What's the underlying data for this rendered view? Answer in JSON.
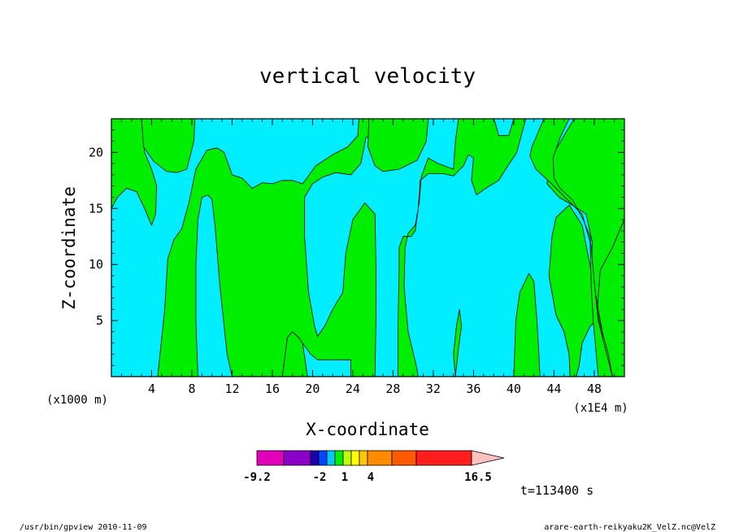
{
  "chart_data": {
    "type": "filled-contour",
    "title": "vertical velocity",
    "xlabel": "X-coordinate",
    "ylabel": "Z-coordinate",
    "x_unit_left": "(x1000 m)",
    "x_unit_right": "(x1E4 m)",
    "xlim": [
      0,
      51
    ],
    "ylim": [
      0,
      23
    ],
    "xticks": [
      4,
      8,
      12,
      16,
      20,
      24,
      28,
      32,
      36,
      40,
      44,
      48
    ],
    "yticks": [
      5,
      10,
      15,
      20
    ],
    "fill_regions": [
      {
        "level": "1 to 2",
        "color": "#00ee00",
        "polygons": [
          [
            [
              0,
              23
            ],
            [
              3,
              23
            ],
            [
              3.3,
              20
            ],
            [
              4,
              18.5
            ],
            [
              4.5,
              17
            ],
            [
              4.4,
              14.5
            ],
            [
              4,
              13.5
            ],
            [
              3.3,
              15
            ],
            [
              2.5,
              16.5
            ],
            [
              1.5,
              16.8
            ],
            [
              0.6,
              16
            ],
            [
              0,
              15
            ]
          ],
          [
            [
              3,
              23
            ],
            [
              3.2,
              20.5
            ],
            [
              4.2,
              19.2
            ],
            [
              5.5,
              18.3
            ],
            [
              6.5,
              18.2
            ],
            [
              7.5,
              18.5
            ],
            [
              8.2,
              21
            ],
            [
              8.3,
              23
            ]
          ],
          [
            [
              4.6,
              0
            ],
            [
              5.3,
              6
            ],
            [
              5.6,
              10.5
            ],
            [
              6.2,
              12.2
            ],
            [
              7,
              13.2
            ],
            [
              7.7,
              15.5
            ],
            [
              8.4,
              18.5
            ],
            [
              9.5,
              20.2
            ],
            [
              10.5,
              20.4
            ],
            [
              11.2,
              20
            ],
            [
              12,
              18
            ],
            [
              13,
              17.7
            ],
            [
              14,
              16.8
            ],
            [
              15,
              17.3
            ],
            [
              16,
              17.2
            ],
            [
              17,
              17.5
            ],
            [
              18,
              17.5
            ],
            [
              19,
              17.2
            ],
            [
              19.5,
              17.8
            ],
            [
              20.3,
              18.8
            ],
            [
              22,
              19.8
            ],
            [
              23.5,
              20.5
            ],
            [
              24.5,
              21.5
            ],
            [
              24.6,
              23
            ],
            [
              28,
              23
            ],
            [
              27.9,
              22
            ],
            [
              26.3,
              21.8
            ],
            [
              25.3,
              21.3
            ],
            [
              24.8,
              19
            ],
            [
              23.8,
              18
            ],
            [
              22.3,
              18.2
            ],
            [
              21,
              17.8
            ],
            [
              20,
              17.2
            ],
            [
              19.2,
              16
            ],
            [
              19.2,
              12.5
            ],
            [
              19.6,
              7.5
            ],
            [
              20.2,
              4.5
            ],
            [
              20.5,
              3.6
            ],
            [
              21.2,
              4.5
            ],
            [
              22,
              6
            ],
            [
              23,
              7.5
            ],
            [
              23.3,
              11
            ],
            [
              24,
              14
            ],
            [
              25.2,
              15.5
            ],
            [
              26.2,
              14.5
            ],
            [
              26.3,
              10
            ],
            [
              26.3,
              5
            ],
            [
              26.2,
              0
            ],
            [
              23.8,
              0
            ],
            [
              23.8,
              1.5
            ],
            [
              22,
              1.5
            ],
            [
              20.5,
              1.5
            ],
            [
              19.8,
              2
            ],
            [
              19,
              3
            ],
            [
              18.6,
              3.5
            ],
            [
              18,
              4
            ],
            [
              17.5,
              3.5
            ],
            [
              17,
              0
            ],
            [
              12,
              0
            ],
            [
              11.5,
              2
            ],
            [
              10.8,
              8
            ],
            [
              10.3,
              13.5
            ],
            [
              10,
              15.8
            ],
            [
              9.6,
              16.2
            ],
            [
              9,
              16
            ],
            [
              8.6,
              14
            ],
            [
              8.4,
              10
            ],
            [
              8.4,
              5
            ],
            [
              8.6,
              0
            ]
          ],
          [
            [
              17,
              0
            ],
            [
              17.5,
              3.5
            ],
            [
              18,
              4
            ],
            [
              18.6,
              3.5
            ],
            [
              19,
              3
            ],
            [
              19.5,
              0
            ]
          ],
          [
            [
              25.6,
              23
            ],
            [
              25.5,
              20.5
            ],
            [
              26.2,
              18.8
            ],
            [
              27,
              18.3
            ],
            [
              28.6,
              18.5
            ],
            [
              29.5,
              18.9
            ],
            [
              30.4,
              19.3
            ],
            [
              31.3,
              21
            ],
            [
              31.5,
              23
            ]
          ],
          [
            [
              28.5,
              0
            ],
            [
              28.5,
              5
            ],
            [
              28.6,
              9.5
            ],
            [
              28.6,
              11.5
            ],
            [
              29,
              12.5
            ],
            [
              29.8,
              12.5
            ],
            [
              30.2,
              13
            ],
            [
              30.5,
              15
            ],
            [
              30.7,
              17.5
            ],
            [
              31.5,
              18.1
            ],
            [
              33,
              18.1
            ],
            [
              34,
              17.9
            ],
            [
              35,
              18.8
            ],
            [
              35.5,
              19.8
            ],
            [
              36,
              19.5
            ],
            [
              35.8,
              17.5
            ],
            [
              36.3,
              16.2
            ],
            [
              37.2,
              16.8
            ],
            [
              38.5,
              17.5
            ],
            [
              39.2,
              18.5
            ],
            [
              40.3,
              20
            ],
            [
              41.2,
              23
            ],
            [
              40,
              23
            ],
            [
              39.5,
              21.5
            ],
            [
              38.5,
              21.5
            ],
            [
              38.2,
              22.5
            ],
            [
              38,
              23
            ],
            [
              34.5,
              23
            ],
            [
              34.2,
              21
            ],
            [
              34,
              18.5
            ],
            [
              32.5,
              19
            ],
            [
              31.5,
              19.5
            ],
            [
              30.8,
              17.8
            ],
            [
              30.6,
              15.5
            ],
            [
              30.2,
              13.5
            ],
            [
              29.5,
              12.8
            ],
            [
              29.2,
              11.5
            ],
            [
              29.1,
              8
            ],
            [
              29.5,
              4
            ],
            [
              30.3,
              1
            ],
            [
              30.5,
              0
            ]
          ],
          [
            [
              34.2,
              0
            ],
            [
              34.5,
              2.5
            ],
            [
              34.8,
              4.5
            ],
            [
              34.6,
              6
            ],
            [
              34.3,
              4.5
            ],
            [
              34.0,
              2
            ]
          ],
          [
            [
              40,
              0
            ],
            [
              40.2,
              5
            ],
            [
              40.6,
              7.5
            ],
            [
              41.5,
              9.2
            ],
            [
              42,
              8.5
            ],
            [
              42.3,
              5
            ],
            [
              42.5,
              2
            ],
            [
              42.6,
              0
            ]
          ],
          [
            [
              43.2,
              0
            ],
            [
              43.2,
              0.1
            ]
          ],
          [
            [
              43.5,
              9
            ],
            [
              44.2,
              12
            ],
            [
              44.8,
              14.2
            ],
            [
              45.2,
              15
            ],
            [
              45.7,
              15
            ],
            [
              46.3,
              14.2
            ],
            [
              46.9,
              12.5
            ],
            [
              47.6,
              9
            ],
            [
              48.4,
              5
            ],
            [
              49.3,
              2
            ],
            [
              49.8,
              0
            ],
            [
              51,
              0
            ],
            [
              51,
              14
            ],
            [
              50.5,
              13
            ],
            [
              49.8,
              11.5
            ],
            [
              48.6,
              9.5
            ],
            [
              48.2,
              5
            ],
            [
              47.6,
              4.5
            ],
            [
              46.8,
              3
            ],
            [
              46.5,
              1
            ],
            [
              46.2,
              0
            ],
            [
              45.6,
              0
            ],
            [
              45.5,
              2
            ],
            [
              45,
              4
            ],
            [
              44.2,
              5.5
            ],
            [
              43.7,
              8
            ]
          ],
          [
            [
              43.5,
              9
            ],
            [
              43.7,
              8
            ],
            [
              44.2,
              5.5
            ],
            [
              45,
              4
            ],
            [
              45.5,
              2
            ],
            [
              45.6,
              0
            ],
            [
              46.2,
              0
            ],
            [
              46.5,
              1
            ],
            [
              46.8,
              3
            ],
            [
              47.6,
              4.5
            ],
            [
              48.2,
              5
            ],
            [
              48.6,
              9.5
            ],
            [
              49.8,
              11.5
            ],
            [
              50.5,
              13
            ],
            [
              51,
              14
            ],
            [
              51,
              23
            ],
            [
              51,
              23
            ],
            [
              46,
              23
            ],
            [
              45,
              21.5
            ],
            [
              43.7,
              19.5
            ],
            [
              43.3,
              17.2
            ],
            [
              44.5,
              16
            ],
            [
              46,
              15.2
            ],
            [
              47.2,
              14.5
            ],
            [
              47.8,
              12
            ],
            [
              47.7,
              9
            ],
            [
              48.5,
              5
            ],
            [
              49.4,
              2
            ],
            [
              49.8,
              0
            ],
            [
              49,
              0
            ],
            [
              48.8,
              4
            ],
            [
              48,
              8
            ],
            [
              46.8,
              13.5
            ],
            [
              45.5,
              15.3
            ],
            [
              44.2,
              14.2
            ],
            [
              43.8,
              12.5
            ],
            [
              43.5,
              9
            ]
          ],
          [
            [
              43,
              23
            ],
            [
              41.8,
              20.5
            ],
            [
              41.6,
              19.7
            ],
            [
              42.2,
              18.5
            ],
            [
              44,
              17
            ],
            [
              45.3,
              15.8
            ],
            [
              46.8,
              14.5
            ],
            [
              47.6,
              12
            ],
            [
              47.7,
              8
            ],
            [
              47.9,
              5
            ],
            [
              48.4,
              0
            ],
            [
              49.8,
              0
            ],
            [
              49.1,
              2.5
            ],
            [
              48.4,
              5
            ],
            [
              48,
              8.5
            ],
            [
              47.6,
              12.5
            ],
            [
              46.9,
              14
            ],
            [
              45.8,
              15.8
            ],
            [
              44.6,
              16.8
            ],
            [
              44,
              17.7
            ],
            [
              43.9,
              19.5
            ],
            [
              44.6,
              21.3
            ],
            [
              45.5,
              23
            ]
          ]
        ]
      }
    ],
    "background_region": {
      "level": "0 to 1",
      "color": "#00eeff"
    },
    "colorbar": {
      "colors": [
        "#e200b8",
        "#8a00c8",
        "#1a00a8",
        "#0048ff",
        "#00c8ff",
        "#00ee00",
        "#c0ff00",
        "#ffff00",
        "#ffc800",
        "#ff8c00",
        "#ff5a00",
        "#ff1e1e",
        "#ff8080",
        "#ffc0c0"
      ],
      "tick_labels": [
        "-9.2",
        "-2",
        "1",
        "4",
        "16.5"
      ],
      "range": [
        -9.2,
        16.5
      ]
    },
    "time_label": "t=113400 s"
  },
  "footer": {
    "left": "/usr/bin/gpview   2010-11-09",
    "right": "arare-earth-reikyaku2K_VelZ.nc@VelZ"
  }
}
